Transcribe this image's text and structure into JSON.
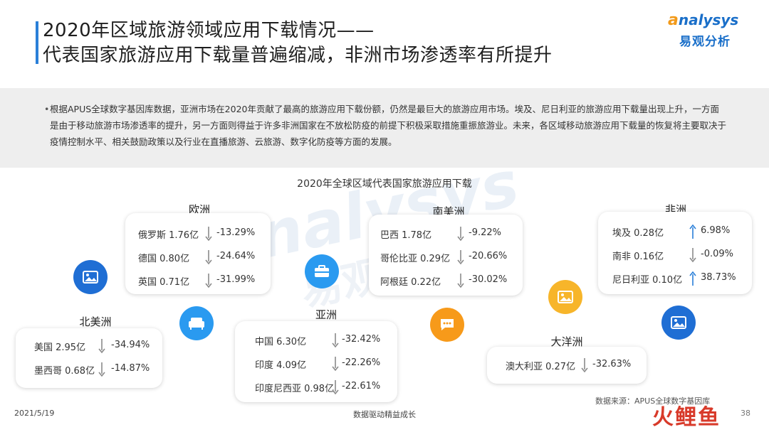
{
  "header": {
    "title_line1": "2020年区域旅游领域应用下载情况——",
    "title_line2": "代表国家旅游应用下载量普遍缩减，非洲市场渗透率有所提升"
  },
  "logo": {
    "top_first": "a",
    "top_rest": "nalysys",
    "bottom": "易观分析"
  },
  "intro": {
    "bullet": "•",
    "text": "根据APUS全球数字基因库数据，亚洲市场在2020年贡献了最高的旅游应用下载份额，仍然是最巨大的旅游应用市场。埃及、尼日利亚的旅游应用下载量出现上升，一方面是由于移动旅游市场渗透率的提升，另一方面则得益于许多非洲国家在不放松防疫的前提下积极采取措施重振旅游业。未来，各区域移动旅游应用下载量的恢复将主要取决于疫情控制水平、相关鼓励政策以及行业在直播旅游、云旅游、数字化防疫等方面的发展。"
  },
  "chart": {
    "title": "2020年全球区域代表国家旅游应用下载"
  },
  "colors": {
    "up": "#2a7fd8",
    "down": "#8a8a8a",
    "blue_dark": "#1f6ed4",
    "blue_light": "#2a9af0",
    "orange": "#f79a1a",
    "yellow": "#f7b52a"
  },
  "regions": {
    "europe": {
      "name": "欧洲",
      "rows": [
        {
          "label": "俄罗斯 1.76亿",
          "pct": "-13.29%",
          "dir": "down"
        },
        {
          "label": "德国 0.80亿",
          "pct": "-24.64%",
          "dir": "down"
        },
        {
          "label": "英国 0.71亿",
          "pct": "-31.99%",
          "dir": "down"
        }
      ]
    },
    "north_america": {
      "name": "北美洲",
      "rows": [
        {
          "label": "美国 2.95亿",
          "pct": "-34.94%",
          "dir": "down"
        },
        {
          "label": "墨西哥 0.68亿",
          "pct": "-14.87%",
          "dir": "down"
        }
      ]
    },
    "asia": {
      "name": "亚洲",
      "rows": [
        {
          "label": "中国 6.30亿",
          "pct": "-32.42%",
          "dir": "down"
        },
        {
          "label": "印度 4.09亿",
          "pct": "-22.26%",
          "dir": "down"
        },
        {
          "label": "印度尼西亚 0.98亿",
          "pct": "-22.61%",
          "dir": "down"
        }
      ]
    },
    "south_america": {
      "name": "南美洲",
      "rows": [
        {
          "label": "巴西 1.78亿",
          "pct": "-9.22%",
          "dir": "down"
        },
        {
          "label": "哥伦比亚 0.29亿",
          "pct": "-20.66%",
          "dir": "down"
        },
        {
          "label": "阿根廷 0.22亿",
          "pct": "-30.02%",
          "dir": "down"
        }
      ]
    },
    "oceania": {
      "name": "大洋洲",
      "rows": [
        {
          "label": "澳大利亚 0.27亿",
          "pct": "-32.63%",
          "dir": "down"
        }
      ]
    },
    "africa": {
      "name": "非洲",
      "rows": [
        {
          "label": "埃及 0.28亿",
          "pct": "6.98%",
          "dir": "up"
        },
        {
          "label": "南非 0.16亿",
          "pct": "-0.09%",
          "dir": "down"
        },
        {
          "label": "尼日利亚 0.10亿",
          "pct": "38.73%",
          "dir": "up"
        }
      ]
    }
  },
  "icons": {
    "na": "image-icon",
    "eu": "sofa-icon",
    "asia": "briefcase-icon",
    "sa": "chat-icon",
    "oceania": "image-icon",
    "africa": "image-icon"
  },
  "footer": {
    "date": "2021/5/19",
    "center": "数据驱动精益成长",
    "source": "数据来源：APUS全球数字基因库",
    "page": "38",
    "stamp": "火鲤鱼"
  },
  "watermark": {
    "line1": "analysys",
    "line2": "易观分析"
  }
}
